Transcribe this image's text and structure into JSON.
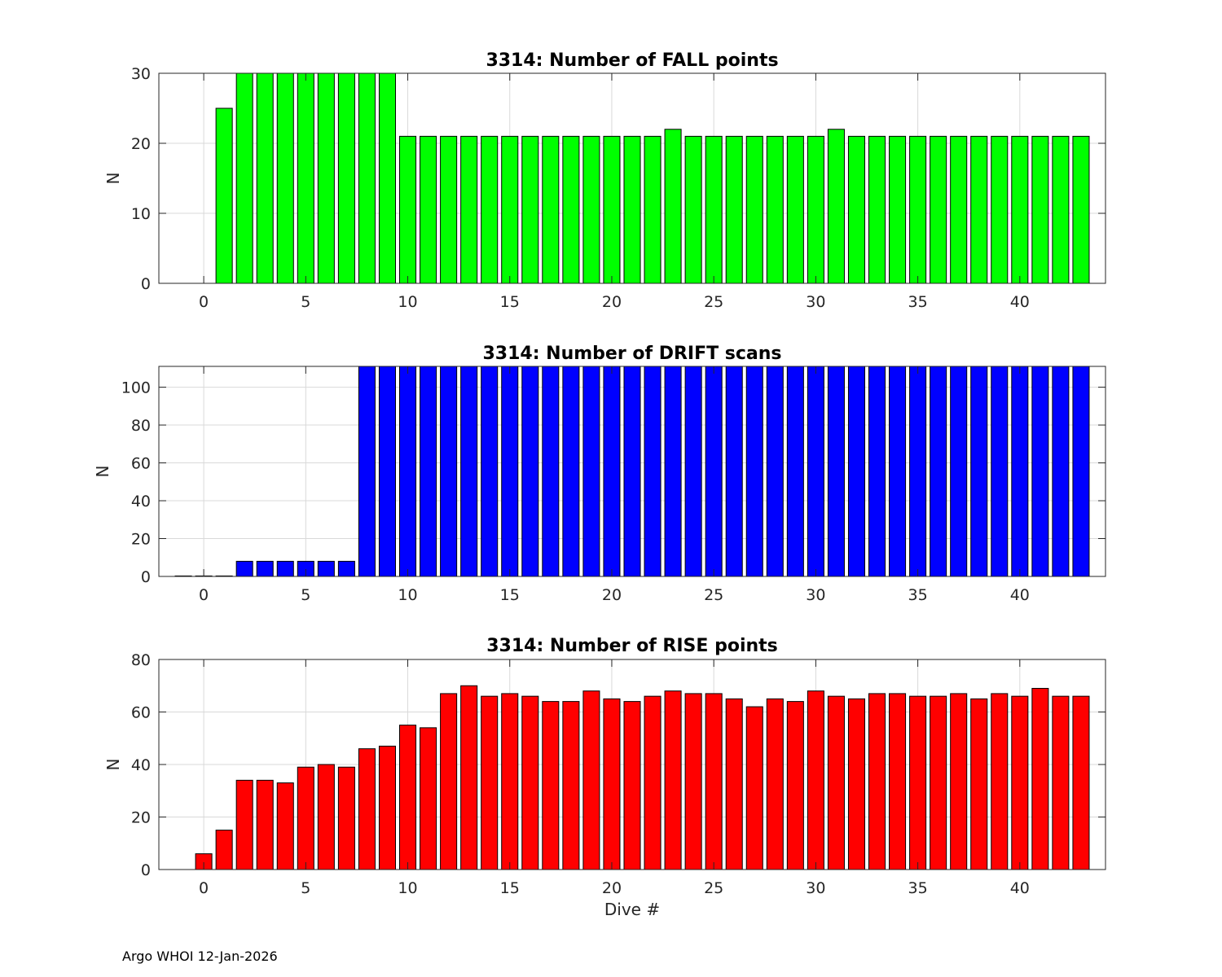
{
  "footer": "Argo WHOI 12-Jan-2026",
  "chart_data": [
    {
      "type": "bar",
      "title": "3314: Number of FALL points",
      "xlabel": "",
      "ylabel": "N",
      "xlim": [
        -2.2,
        44.2
      ],
      "ylim": [
        0,
        30
      ],
      "xticks": [
        0,
        5,
        10,
        15,
        20,
        25,
        30,
        35,
        40
      ],
      "yticks": [
        0,
        10,
        20,
        30
      ],
      "grid": true,
      "color": "#00ff00",
      "x": [
        1,
        2,
        3,
        4,
        5,
        6,
        7,
        8,
        9,
        10,
        11,
        12,
        13,
        14,
        15,
        16,
        17,
        18,
        19,
        20,
        21,
        22,
        23,
        24,
        25,
        26,
        27,
        28,
        29,
        30,
        31,
        32,
        33,
        34,
        35,
        36,
        37,
        38,
        39,
        40,
        41,
        42,
        43
      ],
      "values": [
        25,
        30,
        30,
        30,
        30,
        30,
        30,
        30,
        30,
        21,
        21,
        21,
        21,
        21,
        21,
        21,
        21,
        21,
        21,
        21,
        21,
        21,
        22,
        21,
        21,
        21,
        21,
        21,
        21,
        21,
        22,
        21,
        21,
        21,
        21,
        21,
        21,
        21,
        21,
        21,
        21,
        21,
        21
      ]
    },
    {
      "type": "bar",
      "title": "3314: Number of DRIFT scans",
      "xlabel": "",
      "ylabel": "N",
      "xlim": [
        -2.2,
        44.2
      ],
      "ylim": [
        0,
        111
      ],
      "xticks": [
        0,
        5,
        10,
        15,
        20,
        25,
        30,
        35,
        40
      ],
      "yticks": [
        0,
        20,
        40,
        60,
        80,
        100
      ],
      "grid": true,
      "color": "#0000ff",
      "x": [
        -1,
        0,
        1,
        2,
        3,
        4,
        5,
        6,
        7,
        8,
        9,
        10,
        11,
        12,
        13,
        14,
        15,
        16,
        17,
        18,
        19,
        20,
        21,
        22,
        23,
        24,
        25,
        26,
        27,
        28,
        29,
        30,
        31,
        32,
        33,
        34,
        35,
        36,
        37,
        38,
        39,
        40,
        41,
        42,
        43
      ],
      "values": [
        0,
        0,
        0,
        8,
        8,
        8,
        8,
        8,
        8,
        111,
        111,
        111,
        111,
        111,
        111,
        111,
        111,
        111,
        111,
        111,
        111,
        111,
        111,
        111,
        111,
        111,
        111,
        111,
        111,
        111,
        111,
        111,
        111,
        111,
        111,
        111,
        111,
        111,
        111,
        111,
        111,
        111,
        111,
        111,
        111
      ]
    },
    {
      "type": "bar",
      "title": "3314: Number of RISE points",
      "xlabel": "Dive #",
      "ylabel": "N",
      "xlim": [
        -2.2,
        44.2
      ],
      "ylim": [
        0,
        80
      ],
      "xticks": [
        0,
        5,
        10,
        15,
        20,
        25,
        30,
        35,
        40
      ],
      "yticks": [
        0,
        20,
        40,
        60,
        80
      ],
      "grid": true,
      "color": "#ff0000",
      "x": [
        0,
        1,
        2,
        3,
        4,
        5,
        6,
        7,
        8,
        9,
        10,
        11,
        12,
        13,
        14,
        15,
        16,
        17,
        18,
        19,
        20,
        21,
        22,
        23,
        24,
        25,
        26,
        27,
        28,
        29,
        30,
        31,
        32,
        33,
        34,
        35,
        36,
        37,
        38,
        39,
        40,
        41,
        42,
        43
      ],
      "values": [
        6,
        15,
        34,
        34,
        33,
        39,
        40,
        39,
        46,
        47,
        55,
        54,
        67,
        70,
        66,
        67,
        66,
        64,
        64,
        68,
        65,
        64,
        66,
        68,
        67,
        67,
        65,
        62,
        65,
        64,
        68,
        66,
        65,
        67,
        67,
        66,
        66,
        67,
        65,
        67,
        66,
        69,
        66,
        66
      ]
    }
  ]
}
